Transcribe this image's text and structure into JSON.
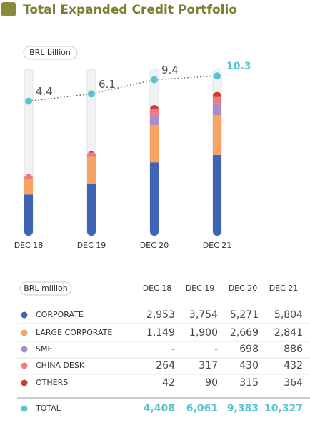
{
  "title": "Total Expanded Credit Portfolio",
  "chart_data": {
    "type": "bar",
    "stacked": true,
    "unit_label": "BRL billion",
    "categories": [
      "DEC 18",
      "DEC 19",
      "DEC 20",
      "DEC 21"
    ],
    "ylim": [
      0,
      12000
    ],
    "series": [
      {
        "name": "CORPORATE",
        "color": "#3f63b5",
        "values": [
          2953,
          3754,
          5271,
          5804
        ],
        "value_labels": [
          "2,953",
          "3,754",
          "5,271",
          "5,804"
        ]
      },
      {
        "name": "LARGE CORPORATE",
        "color": "#f7a462",
        "values": [
          1149,
          1900,
          2669,
          2841
        ],
        "value_labels": [
          "1,149",
          "1,900",
          "2,669",
          "2,841"
        ]
      },
      {
        "name": "SME",
        "color": "#a98cc9",
        "values": [
          null,
          null,
          698,
          886
        ],
        "value_labels": [
          "-",
          "-",
          "698",
          "886"
        ]
      },
      {
        "name": "CHINA DESK",
        "color": "#ef7a80",
        "values": [
          264,
          317,
          430,
          432
        ],
        "value_labels": [
          "264",
          "317",
          "430",
          "432"
        ]
      },
      {
        "name": "OTHERS",
        "color": "#d03b2c",
        "values": [
          42,
          90,
          315,
          364
        ],
        "value_labels": [
          "42",
          "90",
          "315",
          "364"
        ]
      }
    ],
    "line": {
      "color": "#5bc4d0",
      "axis": "y2",
      "values": [
        4.4,
        6.1,
        9.4,
        10.3
      ]
    },
    "y2lim": [
      -27,
      12
    ],
    "table_unit_label": "BRL million",
    "total": {
      "name": "TOTAL",
      "color": "#5bc4d0",
      "values": [
        4408,
        6061,
        9383,
        10327
      ],
      "value_labels": [
        "4,408",
        "6,061",
        "9,383",
        "10,327"
      ]
    }
  }
}
